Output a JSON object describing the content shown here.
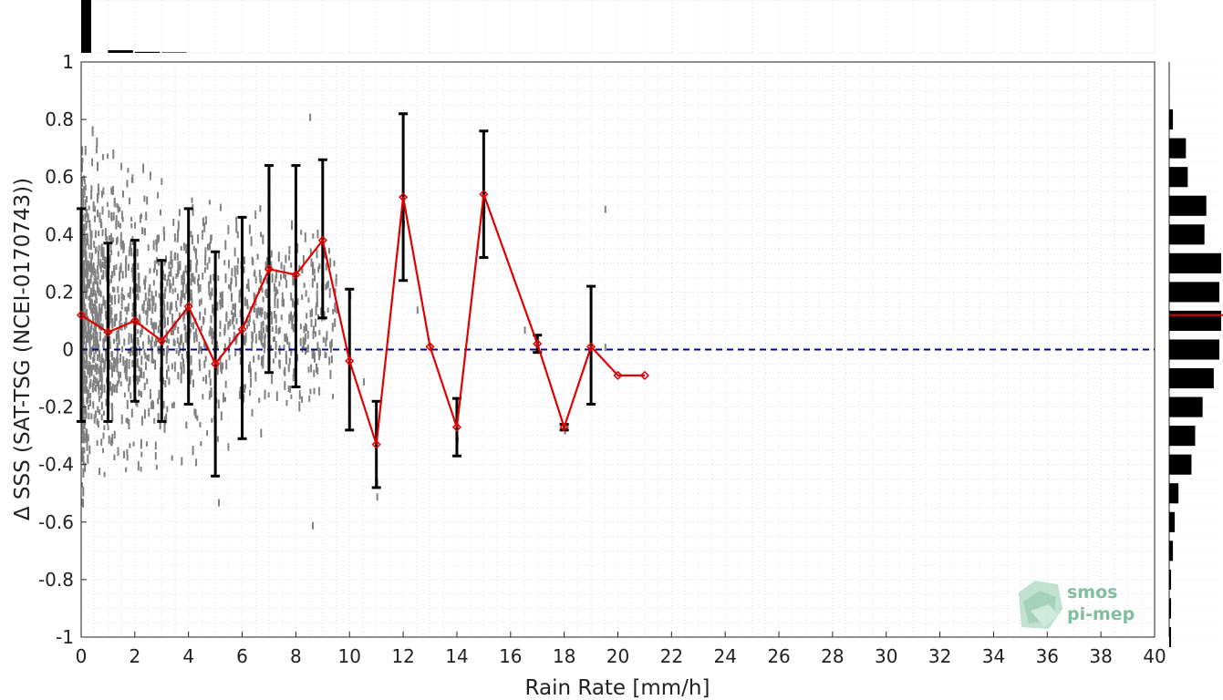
{
  "chart_data": {
    "type": "line",
    "xlabel": "Rain Rate [mm/h]",
    "ylabel": "Δ SSS (SAT-TSG (NCEI-0170743))",
    "xlim": [
      0,
      40
    ],
    "ylim": [
      -1,
      1
    ],
    "x_ticks": [
      0,
      2,
      4,
      6,
      8,
      10,
      12,
      14,
      16,
      18,
      20,
      22,
      24,
      26,
      28,
      30,
      32,
      34,
      36,
      38,
      40
    ],
    "y_ticks": [
      1,
      0.8,
      0.6,
      0.4,
      0.2,
      0,
      -0.2,
      -0.4,
      -0.6,
      -0.8,
      -1
    ],
    "grid": true,
    "zero_line": {
      "y": 0,
      "color": "#00008b",
      "style": "dashed"
    },
    "series": [
      {
        "marker": "diamond",
        "color": "#e00000",
        "x": [
          0,
          1,
          2,
          3,
          4,
          5,
          6,
          7,
          8,
          9,
          10,
          11,
          12,
          13,
          14,
          15,
          17,
          18,
          19,
          20,
          21
        ],
        "y": [
          0.12,
          0.06,
          0.1,
          0.03,
          0.15,
          -0.05,
          0.07,
          0.28,
          0.26,
          0.38,
          -0.04,
          -0.33,
          0.53,
          0.01,
          -0.27,
          0.54,
          0.02,
          -0.27,
          0.01,
          -0.09,
          -0.09
        ],
        "err_low": [
          -0.25,
          -0.25,
          -0.18,
          -0.25,
          -0.19,
          -0.44,
          -0.31,
          -0.08,
          -0.13,
          0.11,
          -0.28,
          -0.48,
          0.24,
          null,
          -0.37,
          0.32,
          -0.01,
          -0.28,
          -0.19,
          null,
          null
        ],
        "err_high": [
          0.49,
          0.37,
          0.38,
          0.31,
          0.49,
          0.34,
          0.46,
          0.64,
          0.64,
          0.66,
          0.21,
          -0.18,
          0.82,
          null,
          -0.17,
          0.76,
          0.05,
          -0.26,
          0.22,
          null,
          null
        ]
      }
    ],
    "scatter_color": "#808080",
    "top_histogram": {
      "bin_x": [
        0,
        1,
        2,
        3
      ],
      "counts": [
        100,
        5,
        2,
        1
      ]
    },
    "right_histogram": {
      "bin_centers": [
        -1,
        -0.9,
        -0.8,
        -0.7,
        -0.6,
        -0.5,
        -0.4,
        -0.3,
        -0.2,
        -0.1,
        0,
        0.1,
        0.2,
        0.3,
        0.4,
        0.5,
        0.6,
        0.7,
        0.8,
        0.9,
        1
      ],
      "counts": [
        1,
        1,
        1,
        2,
        3,
        5,
        12,
        14,
        18,
        24,
        27,
        28,
        27,
        28,
        19,
        20,
        10,
        9,
        2,
        0,
        0
      ],
      "median_line": 0.12,
      "median_color": "#e00000"
    }
  },
  "logo": {
    "line1": "smos",
    "line2": "pi-mep",
    "color": "#7fbf9f"
  }
}
